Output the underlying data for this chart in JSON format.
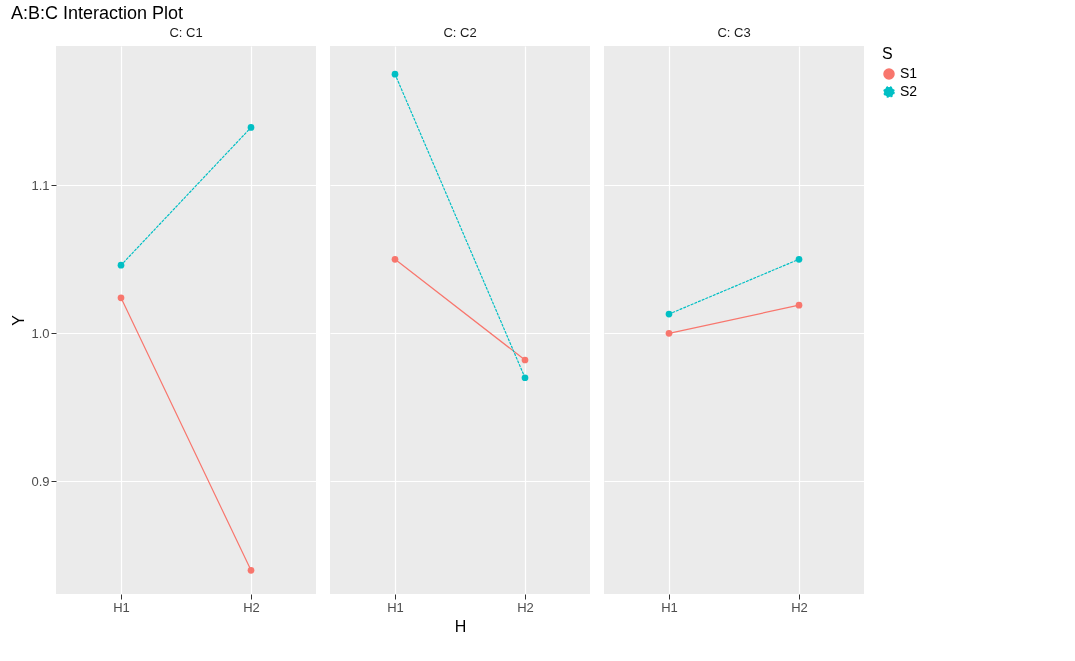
{
  "chart_data": [
    {
      "type": "line",
      "title": "A:B:C Interaction Plot",
      "subtitle": "C: C1",
      "ylabel": "Y",
      "categories": [
        "H1",
        "H2"
      ],
      "ylim": [
        0.824,
        1.194
      ],
      "yticks": [
        0.9,
        {
          "value": 1.0,
          "label": "1.0"
        },
        1.1
      ],
      "grid": true,
      "marker": "circle",
      "legend": "right",
      "series": [
        {
          "name": "S1",
          "color": "#f8766d",
          "line_style": "solid",
          "values": [
            1.024,
            0.84
          ]
        },
        {
          "name": "S2",
          "color": "#00bfc4",
          "line_style": "dotted",
          "values": [
            1.046,
            1.139
          ]
        }
      ]
    },
    {
      "type": "line",
      "subtitle": "C: C2",
      "xlabel": "H",
      "categories": [
        "H1",
        "H2"
      ],
      "ylim": [
        0.824,
        1.194
      ],
      "yticks": [
        0.9,
        1,
        1.1
      ],
      "grid": true,
      "marker": "circle",
      "legend": "right",
      "tick_labels": "x",
      "series": [
        {
          "name": "S1",
          "color": "#f8766d",
          "line_style": "solid",
          "values": [
            1.05,
            0.982
          ]
        },
        {
          "name": "S2",
          "color": "#00bfc4",
          "line_style": "dotted",
          "values": [
            1.175,
            0.97
          ]
        }
      ]
    },
    {
      "type": "line",
      "subtitle": "C: C3",
      "categories": [
        "H1",
        "H2"
      ],
      "ylim": [
        0.824,
        1.194
      ],
      "yticks": [
        0.9,
        1,
        1.1
      ],
      "grid": true,
      "marker": "circle",
      "legend": "right",
      "legend_title": "S",
      "tick_labels": "x",
      "series": [
        {
          "name": "S1",
          "color": "#f8766d",
          "line_style": "solid",
          "values": [
            1.0,
            1.019
          ]
        },
        {
          "name": "S2",
          "color": "#00bfc4",
          "line_style": "dotted",
          "values": [
            1.013,
            1.05
          ]
        }
      ]
    }
  ]
}
